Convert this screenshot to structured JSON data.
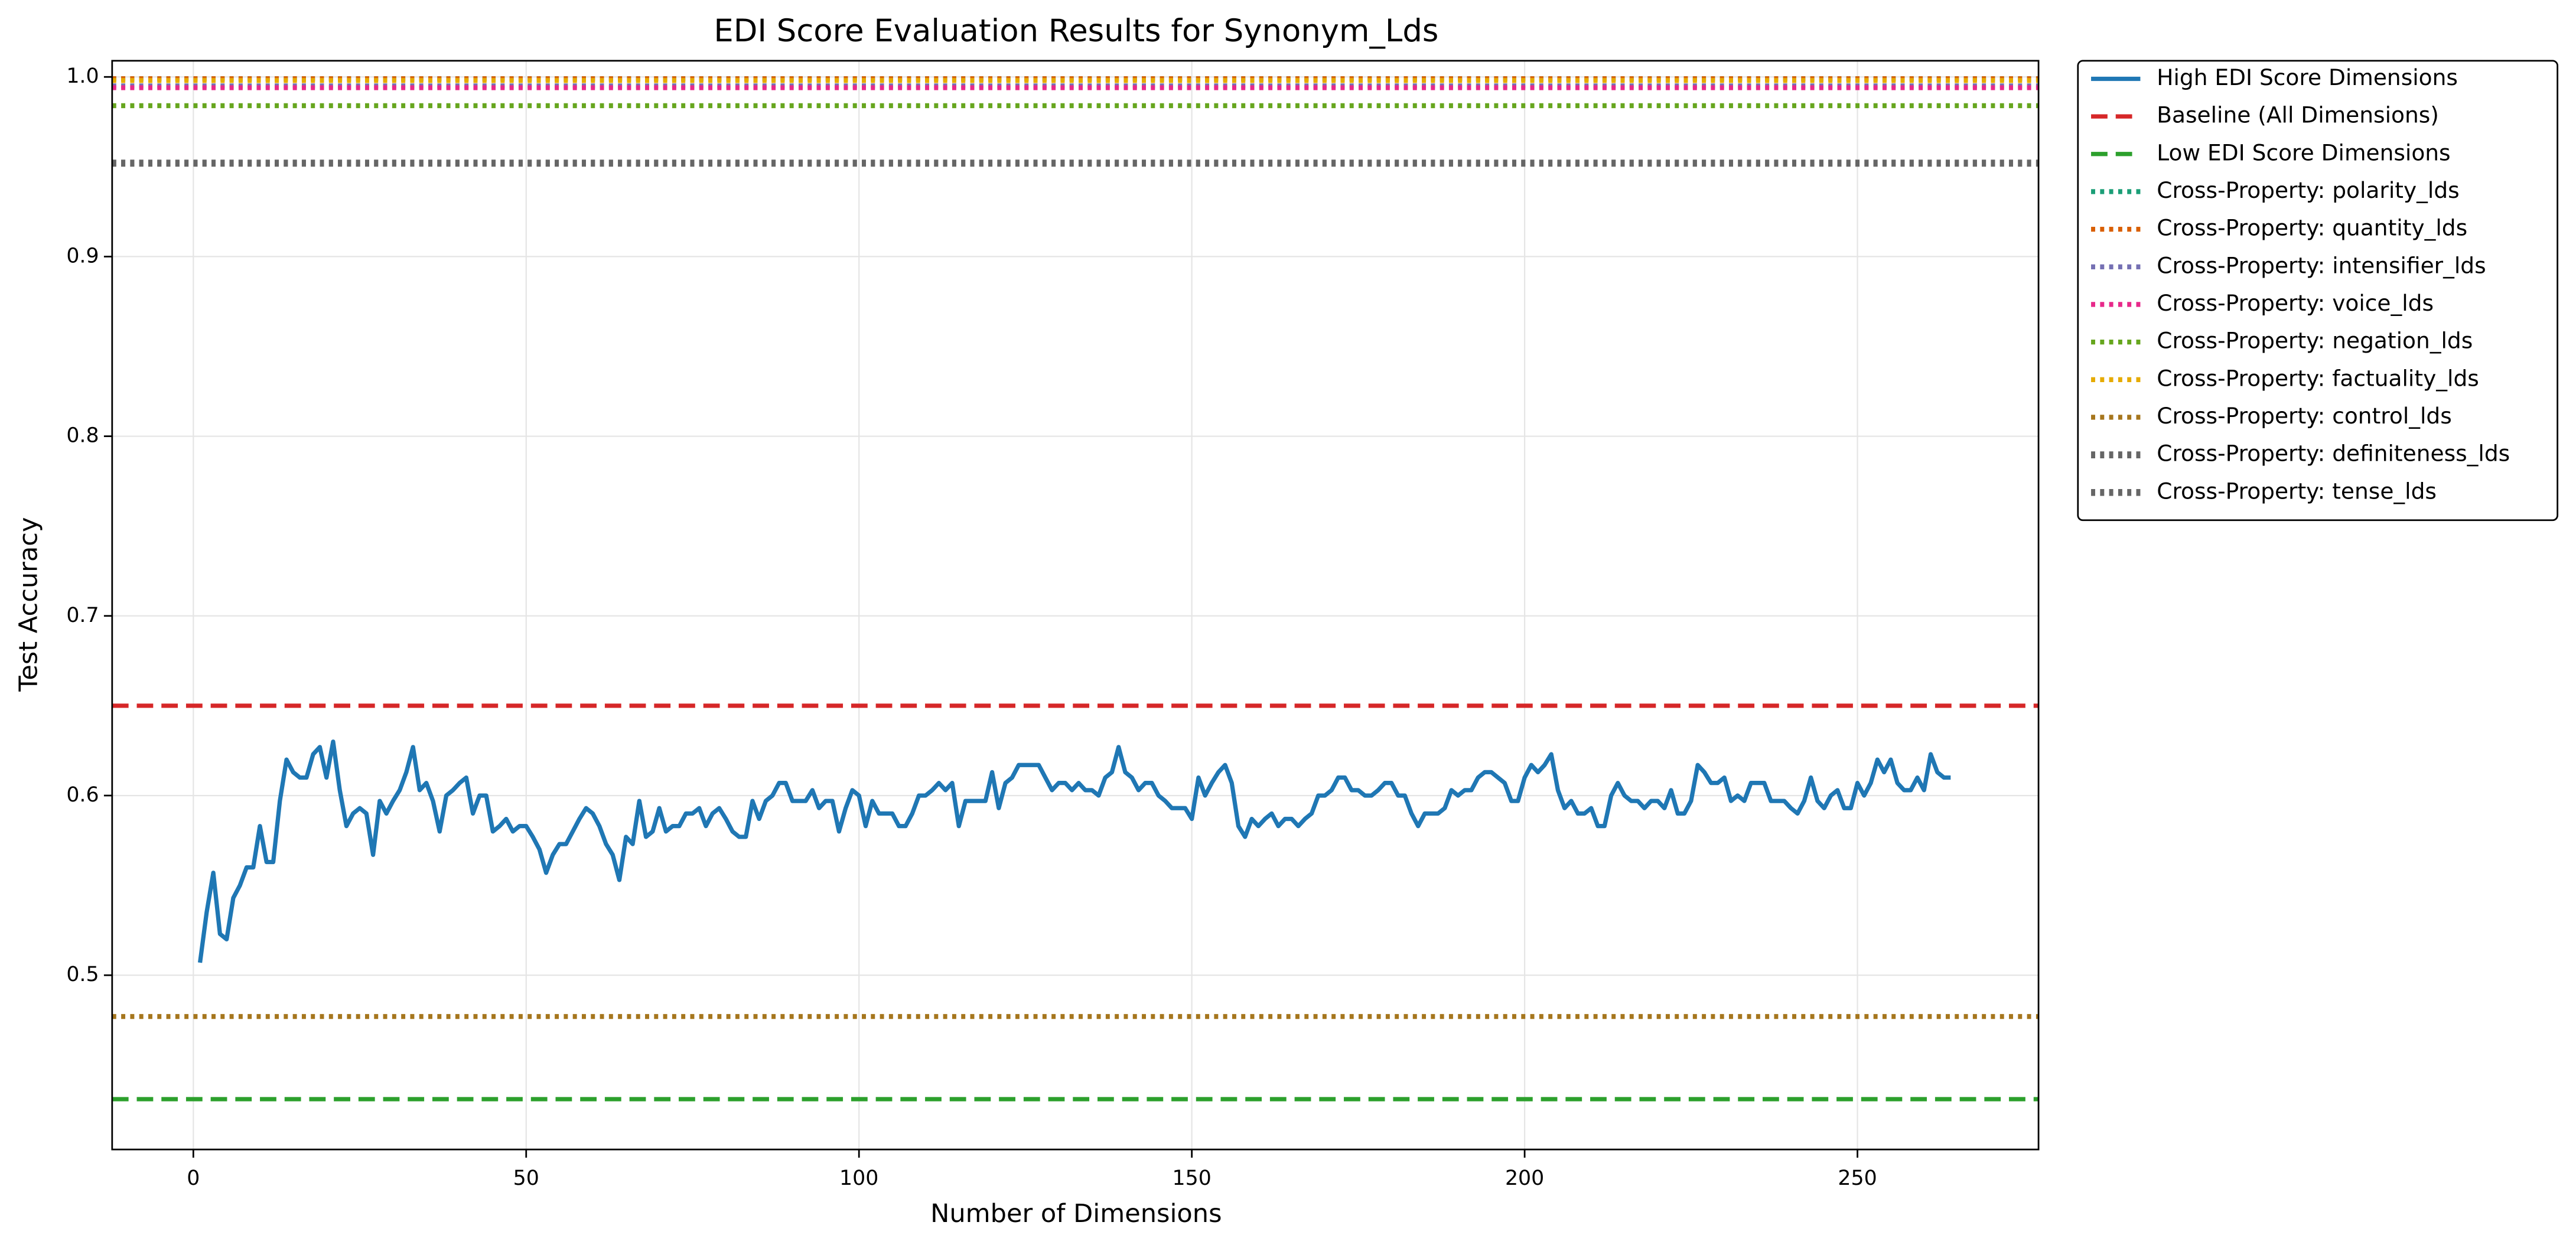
{
  "chart_data": {
    "type": "line",
    "title": "EDI Score Evaluation Results for Synonym_Lds",
    "x_label": "Number of Dimensions",
    "y_label": "Test Accuracy",
    "xlim": [
      -12.2,
      277.2
    ],
    "ylim": [
      0.403,
      1.009
    ],
    "xticks": [
      0,
      50,
      100,
      150,
      200,
      250
    ],
    "yticks": [
      0.5,
      0.6,
      0.7,
      0.8,
      0.9,
      {
        "value": 1,
        "label": "1.0"
      }
    ],
    "grid": true,
    "legend": "outside-upper-right",
    "series": [
      {
        "name": "High EDI Score Dimensions",
        "color": "#1f77b4",
        "x": [
          1,
          2,
          3,
          4,
          5,
          6,
          7,
          8,
          9,
          10,
          11,
          12,
          13,
          14,
          15,
          16,
          17,
          18,
          19,
          20,
          21,
          22,
          23,
          24,
          25,
          26,
          27,
          28,
          29,
          30,
          31,
          32,
          33,
          34,
          35,
          36,
          37,
          38,
          39,
          40,
          41,
          42,
          43,
          44,
          45,
          46,
          47,
          48,
          49,
          50,
          51,
          52,
          53,
          54,
          55,
          56,
          57,
          58,
          59,
          60,
          61,
          62,
          63,
          64,
          65,
          66,
          67,
          68,
          69,
          70,
          71,
          72,
          73,
          74,
          75,
          76,
          77,
          78,
          79,
          80,
          81,
          82,
          83,
          84,
          85,
          86,
          87,
          88,
          89,
          90,
          91,
          92,
          93,
          94,
          95,
          96,
          97,
          98,
          99,
          100,
          101,
          102,
          103,
          104,
          105,
          106,
          107,
          108,
          109,
          110,
          111,
          112,
          113,
          114,
          115,
          116,
          117,
          118,
          119,
          120,
          121,
          122,
          123,
          124,
          125,
          126,
          127,
          128,
          129,
          130,
          131,
          132,
          133,
          134,
          135,
          136,
          137,
          138,
          139,
          140,
          141,
          142,
          143,
          144,
          145,
          146,
          147,
          148,
          149,
          150,
          151,
          152,
          153,
          154,
          155,
          156,
          157,
          158,
          159,
          160,
          161,
          162,
          163,
          164,
          165,
          166,
          167,
          168,
          169,
          170,
          171,
          172,
          173,
          174,
          175,
          176,
          177,
          178,
          179,
          180,
          181,
          182,
          183,
          184,
          185,
          186,
          187,
          188,
          189,
          190,
          191,
          192,
          193,
          194,
          195,
          196,
          197,
          198,
          199,
          200,
          201,
          202,
          203,
          204,
          205,
          206,
          207,
          208,
          209,
          210,
          211,
          212,
          213,
          214,
          215,
          216,
          217,
          218,
          219,
          220,
          221,
          222,
          223,
          224,
          225,
          226,
          227,
          228,
          229,
          230,
          231,
          232,
          233,
          234,
          235,
          236,
          237,
          238,
          239,
          240,
          241,
          242,
          243,
          244,
          245,
          246,
          247,
          248,
          249,
          250,
          251,
          252,
          253,
          254,
          255,
          256,
          257,
          258,
          259,
          260,
          261,
          262,
          263,
          264
        ],
        "values": [
          0.507,
          0.535,
          0.557,
          0.523,
          0.52,
          0.543,
          0.55,
          0.56,
          0.56,
          0.583,
          0.563,
          0.563,
          0.597,
          0.62,
          0.613,
          0.61,
          0.61,
          0.623,
          0.627,
          0.61,
          0.63,
          0.603,
          0.583,
          0.59,
          0.593,
          0.59,
          0.567,
          0.597,
          0.59,
          0.597,
          0.603,
          0.613,
          0.627,
          0.603,
          0.607,
          0.597,
          0.58,
          0.6,
          0.603,
          0.607,
          0.61,
          0.59,
          0.6,
          0.6,
          0.58,
          0.583,
          0.587,
          0.58,
          0.583,
          0.583,
          0.577,
          0.57,
          0.557,
          0.567,
          0.573,
          0.573,
          0.58,
          0.587,
          0.593,
          0.59,
          0.583,
          0.573,
          0.567,
          0.553,
          0.577,
          0.573,
          0.597,
          0.577,
          0.58,
          0.593,
          0.58,
          0.583,
          0.583,
          0.59,
          0.59,
          0.593,
          0.583,
          0.59,
          0.593,
          0.587,
          0.58,
          0.577,
          0.577,
          0.597,
          0.587,
          0.597,
          0.6,
          0.607,
          0.607,
          0.597,
          0.597,
          0.597,
          0.603,
          0.593,
          0.597,
          0.597,
          0.58,
          0.593,
          0.603,
          0.6,
          0.583,
          0.597,
          0.59,
          0.59,
          0.59,
          0.583,
          0.583,
          0.59,
          0.6,
          0.6,
          0.603,
          0.607,
          0.603,
          0.607,
          0.583,
          0.597,
          0.597,
          0.597,
          0.597,
          0.613,
          0.593,
          0.607,
          0.61,
          0.617,
          0.617,
          0.617,
          0.617,
          0.61,
          0.603,
          0.607,
          0.607,
          0.603,
          0.607,
          0.603,
          0.603,
          0.6,
          0.61,
          0.613,
          0.627,
          0.613,
          0.61,
          0.603,
          0.607,
          0.607,
          0.6,
          0.597,
          0.593,
          0.593,
          0.593,
          0.587,
          0.61,
          0.6,
          0.607,
          0.613,
          0.617,
          0.607,
          0.583,
          0.577,
          0.587,
          0.583,
          0.587,
          0.59,
          0.583,
          0.587,
          0.587,
          0.583,
          0.587,
          0.59,
          0.6,
          0.6,
          0.603,
          0.61,
          0.61,
          0.603,
          0.603,
          0.6,
          0.6,
          0.603,
          0.607,
          0.607,
          0.6,
          0.6,
          0.59,
          0.583,
          0.59,
          0.59,
          0.59,
          0.593,
          0.603,
          0.6,
          0.603,
          0.603,
          0.61,
          0.613,
          0.613,
          0.61,
          0.607,
          0.597,
          0.597,
          0.61,
          0.617,
          0.613,
          0.617,
          0.623,
          0.603,
          0.593,
          0.597,
          0.59,
          0.59,
          0.593,
          0.583,
          0.583,
          0.6,
          0.607,
          0.6,
          0.597,
          0.597,
          0.593,
          0.597,
          0.597,
          0.593,
          0.603,
          0.59,
          0.59,
          0.597,
          0.617,
          0.613,
          0.607,
          0.607,
          0.61,
          0.597,
          0.6,
          0.597,
          0.607,
          0.607,
          0.607,
          0.597,
          0.597,
          0.597,
          0.593,
          0.59,
          0.597,
          0.61,
          0.597,
          0.593,
          0.6,
          0.603,
          0.593,
          0.593,
          0.607,
          0.6,
          0.607,
          0.62,
          0.613,
          0.62,
          0.607,
          0.603,
          0.603,
          0.61,
          0.603,
          0.623,
          0.613,
          0.61,
          0.61
        ]
      }
    ],
    "hlines": [
      {
        "name": "Baseline (All Dimensions)",
        "color": "#d62728",
        "style": "dashed",
        "value": 0.65
      },
      {
        "name": "Low EDI Score Dimensions",
        "color": "#2ca02c",
        "style": "dashed",
        "value": 0.431
      },
      {
        "name": "Cross-Property: polarity_lds",
        "color": "#1b9e77",
        "style": "dotted",
        "value": 0.999
      },
      {
        "name": "Cross-Property: quantity_lds",
        "color": "#d95f02",
        "style": "dotted",
        "value": 0.999
      },
      {
        "name": "Cross-Property: intensifier_lds",
        "color": "#7570b3",
        "style": "dotted",
        "value": 0.995
      },
      {
        "name": "Cross-Property: voice_lds",
        "color": "#e7298a",
        "style": "dotted",
        "value": 0.994
      },
      {
        "name": "Cross-Property: negation_lds",
        "color": "#66a61e",
        "style": "dotted",
        "value": 0.984
      },
      {
        "name": "Cross-Property: factuality_lds",
        "color": "#e6ab02",
        "style": "dotted",
        "value": 0.998
      },
      {
        "name": "Cross-Property: control_lds",
        "color": "#a6761d",
        "style": "dotted",
        "value": 0.477
      },
      {
        "name": "Cross-Property: definiteness_lds",
        "color": "#666666",
        "style": "dotted",
        "value": 0.952
      },
      {
        "name": "Cross-Property: tense_lds",
        "color": "#666666",
        "style": "dotted",
        "value": 0.952
      }
    ]
  }
}
